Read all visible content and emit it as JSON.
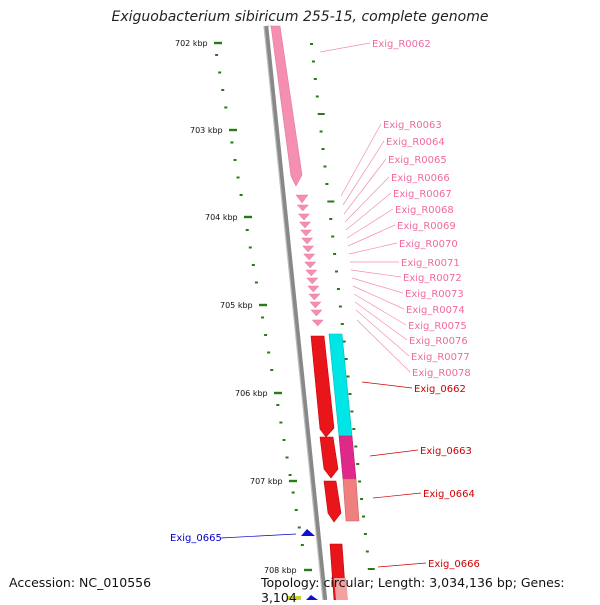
{
  "title": "Exiguobacterium sibiricum 255-15, complete genome",
  "footer": {
    "accession": "Accession: NC_010556",
    "summary": "Topology: circular; Length: 3,034,136 bp; Genes: 3,104"
  },
  "ruler_ticks": [
    "702 kbp",
    "703 kbp",
    "704 kbp",
    "705 kbp",
    "706 kbp",
    "707 kbp",
    "708 kbp"
  ],
  "rrna_labels": [
    "Exig_R0062",
    "Exig_R0063",
    "Exig_R0064",
    "Exig_R0065",
    "Exig_R0066",
    "Exig_R0067",
    "Exig_R0068",
    "Exig_R0069",
    "Exig_R0070",
    "Exig_R0071",
    "Exig_R0072",
    "Exig_R0073",
    "Exig_R0074",
    "Exig_R0075",
    "Exig_R0076",
    "Exig_R0077",
    "Exig_R0078"
  ],
  "gene_labels_right": [
    "Exig_0662",
    "Exig_0663",
    "Exig_0664",
    "Exig_0666"
  ],
  "gene_label_left": "Exig_0665",
  "colors": {
    "rrna": "#f48fb1",
    "gene": "#e8151a",
    "cyan_feature": "#00e5e5",
    "magenta_feature": "#e0288a",
    "salmon_feature": "#f08080",
    "blue_feature": "#1010d0",
    "backbone": "#888888",
    "tick": "#2a7a1a",
    "left_label": "#0000cc"
  }
}
